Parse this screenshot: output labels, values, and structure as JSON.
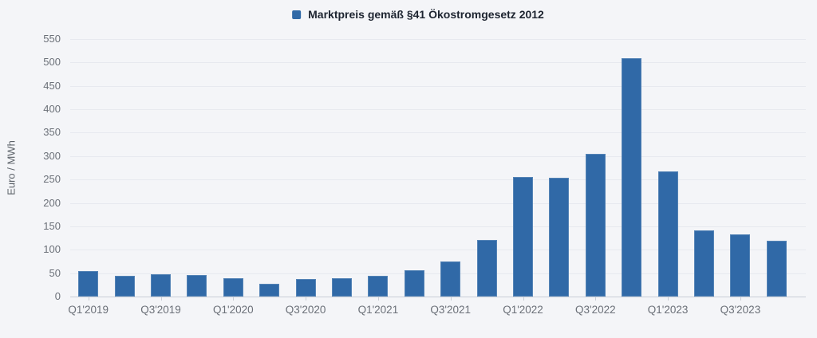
{
  "legend": {
    "label": "Marktpreis gemäß §41 Ökostromgesetz 2012"
  },
  "colors": {
    "bar": "#3069a7",
    "background": "#f4f5f8",
    "gridline": "#e7e9ef",
    "axis_line": "#c9ced6",
    "axis_text": "#6b7078",
    "legend_text": "#1d2430"
  },
  "chart_data": {
    "type": "bar",
    "title": "Marktpreis gemäß §41 Ökostromgesetz 2012",
    "xlabel": "",
    "ylabel": "Euro / MWh",
    "ylim": [
      0,
      550
    ],
    "ytick_step": 50,
    "ytick_labels": [
      "0",
      "50",
      "100",
      "150",
      "200",
      "250",
      "300",
      "350",
      "400",
      "450",
      "500",
      "550"
    ],
    "grid": true,
    "legend_position": "top-center",
    "label_every": 2,
    "visible_x_tick_labels": [
      "Q1'2019",
      "Q3'2019",
      "Q1'2020",
      "Q3'2020",
      "Q1'2021",
      "Q3'2021",
      "Q1'2022",
      "Q3'2022",
      "Q1'2023",
      "Q3'2023"
    ],
    "categories": [
      "Q1'2019",
      "Q2'2019",
      "Q3'2019",
      "Q4'2019",
      "Q1'2020",
      "Q2'2020",
      "Q3'2020",
      "Q4'2020",
      "Q1'2021",
      "Q2'2021",
      "Q3'2021",
      "Q4'2021",
      "Q1'2022",
      "Q2'2022",
      "Q3'2022",
      "Q4'2022",
      "Q1'2023",
      "Q2'2023",
      "Q3'2023",
      "Q4'2023"
    ],
    "series": [
      {
        "name": "Marktpreis gemäß §41 Ökostromgesetz 2012",
        "values": [
          55,
          44,
          47,
          46,
          40,
          28,
          37,
          39,
          45,
          56,
          75,
          121,
          255,
          253,
          304,
          510,
          267,
          142,
          132,
          119
        ]
      }
    ]
  }
}
